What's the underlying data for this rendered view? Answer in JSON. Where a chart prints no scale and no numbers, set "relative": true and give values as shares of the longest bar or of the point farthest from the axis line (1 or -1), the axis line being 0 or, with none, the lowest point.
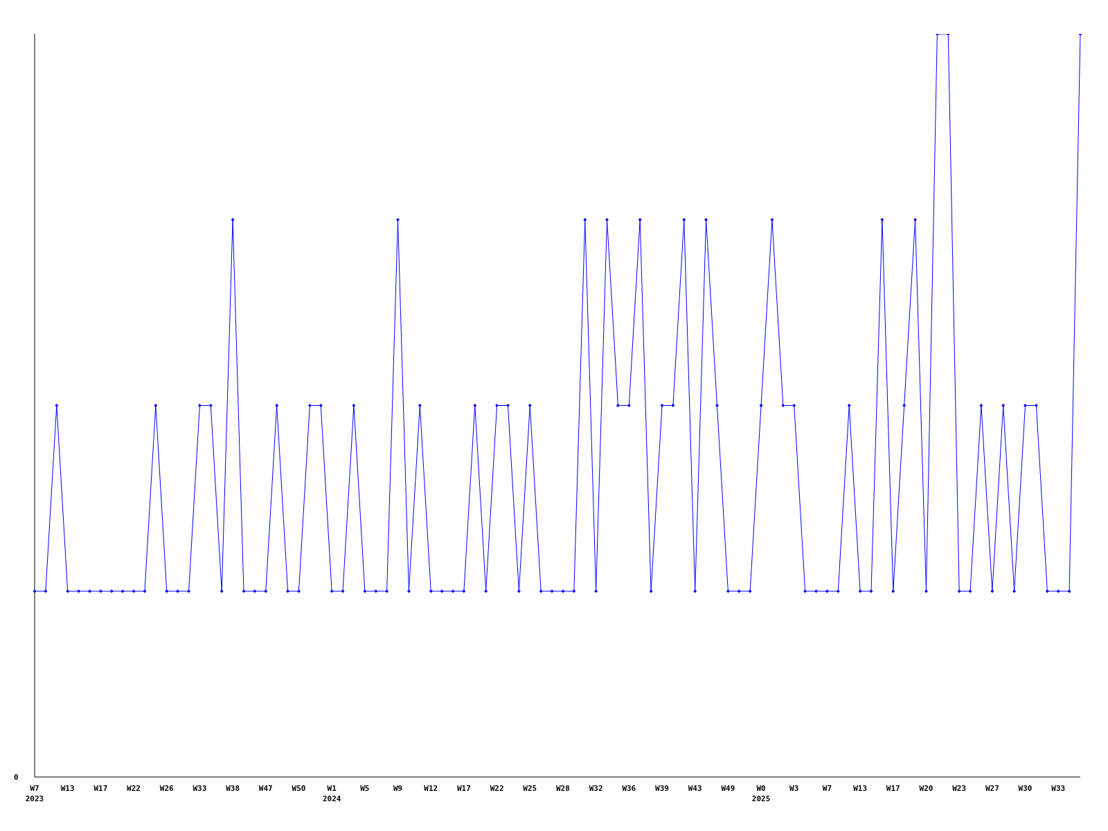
{
  "chart_data": {
    "type": "line",
    "relative": true,
    "marker": "diamond",
    "line_style": "solid",
    "categories": [
      "W7\n2023",
      null,
      null,
      "W13",
      null,
      null,
      "W17",
      null,
      null,
      "W22",
      null,
      null,
      "W26",
      null,
      null,
      "W33",
      null,
      null,
      "W38",
      null,
      null,
      "W47",
      null,
      null,
      "W50",
      null,
      null,
      "W1\n2024",
      null,
      null,
      "W5",
      null,
      null,
      "W9",
      null,
      null,
      "W12",
      null,
      null,
      "W17",
      null,
      null,
      "W22",
      null,
      null,
      "W25",
      null,
      null,
      "W28",
      null,
      null,
      "W32",
      null,
      null,
      "W36",
      null,
      null,
      "W39",
      null,
      null,
      "W43",
      null,
      null,
      "W49",
      null,
      null,
      "W0\n2025",
      null,
      null,
      "W3",
      null,
      null,
      "W7",
      null,
      null,
      "W13",
      null,
      null,
      "W17",
      null,
      null,
      "W20",
      null,
      null,
      "W23",
      null,
      null,
      "W27",
      null,
      null,
      "W30",
      null,
      null,
      "W33",
      null,
      null
    ],
    "series": [
      {
        "color": "#0000ff",
        "values": [
          0.25,
          0.25,
          0.5,
          0.25,
          0.25,
          0.25,
          0.25,
          0.25,
          0.25,
          0.25,
          0.25,
          0.5,
          0.25,
          0.25,
          0.25,
          0.5,
          0.5,
          0.25,
          0.75,
          0.25,
          0.25,
          0.25,
          0.5,
          0.25,
          0.25,
          0.5,
          0.5,
          0.25,
          0.25,
          0.5,
          0.25,
          0.25,
          0.25,
          0.75,
          0.25,
          0.5,
          0.25,
          0.25,
          0.25,
          0.25,
          0.5,
          0.25,
          0.5,
          0.5,
          0.25,
          0.5,
          0.25,
          0.25,
          0.25,
          0.25,
          0.75,
          0.25,
          0.75,
          0.5,
          0.5,
          0.75,
          0.25,
          0.5,
          0.5,
          0.75,
          0.25,
          0.75,
          0.5,
          0.25,
          0.25,
          0.25,
          0.5,
          0.75,
          0.5,
          0.5,
          0.25,
          0.25,
          0.25,
          0.25,
          0.5,
          0.25,
          0.25,
          0.75,
          0.25,
          0.5,
          0.75,
          0.25,
          1,
          1,
          0.25,
          0.25,
          0.5,
          0.25,
          0.5,
          0.25,
          0.5,
          0.5,
          0.25,
          0.25,
          0.25,
          1
        ]
      }
    ],
    "annotations": [
      "0"
    ]
  }
}
